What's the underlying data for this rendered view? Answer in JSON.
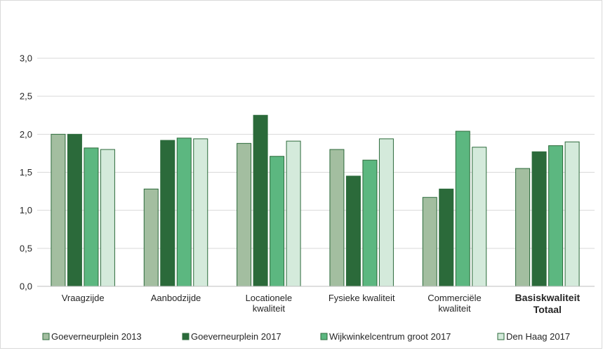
{
  "chart_data": {
    "type": "bar",
    "title": "",
    "xlabel": "",
    "ylabel": "",
    "ylim": [
      0,
      3.0
    ],
    "y_ticks": [
      "0,0",
      "0,5",
      "1,0",
      "1,5",
      "2,0",
      "2,5",
      "3,0"
    ],
    "grid": true,
    "legend_position": "bottom",
    "categories": [
      [
        "Vraagzijde"
      ],
      [
        "Aanbodzijde"
      ],
      [
        "Locationele",
        "kwaliteit"
      ],
      [
        "Fysieke kwaliteit"
      ],
      [
        "Commerciële",
        "kwaliteit"
      ],
      [
        "Basiskwaliteit",
        "Totaal"
      ]
    ],
    "bold_category_index": 5,
    "series": [
      {
        "name": "Goeverneurplein 2013",
        "color": "#a3bea0",
        "values": [
          2.0,
          1.28,
          1.88,
          1.8,
          1.17,
          1.55
        ]
      },
      {
        "name": "Goeverneurplein 2017",
        "color": "#2b6a3a",
        "values": [
          2.0,
          1.92,
          2.25,
          1.45,
          1.28,
          1.77
        ]
      },
      {
        "name": "Wijkwinkelcentrum groot 2017",
        "color": "#5cb780",
        "values": [
          1.82,
          1.95,
          1.71,
          1.66,
          2.04,
          1.85
        ]
      },
      {
        "name": "Den Haag 2017",
        "color": "#d4eadb",
        "values": [
          1.8,
          1.94,
          1.91,
          1.94,
          1.83,
          1.9
        ]
      }
    ],
    "bar_outline_color": "#2b6a3a",
    "gridline_color": "#d9d9d9"
  }
}
